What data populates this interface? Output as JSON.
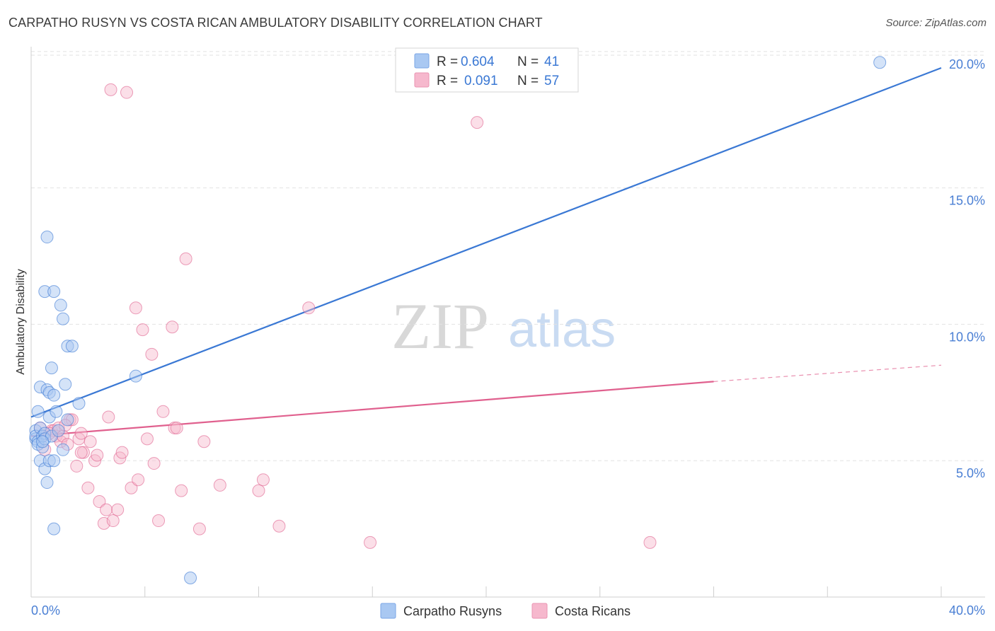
{
  "header": {
    "title": "CARPATHO RUSYN VS COSTA RICAN AMBULATORY DISABILITY CORRELATION CHART",
    "source": "Source: ZipAtlas.com"
  },
  "watermark": {
    "zip": "ZIP",
    "atlas": "atlas"
  },
  "colors": {
    "blue": "#3a78d4",
    "blue_fill": "#a9c8f2",
    "pink": "#e0608e",
    "pink_fill": "#f6b8cd",
    "grid": "#e2e2e2",
    "tick_label": "#4a7fd4"
  },
  "legend": {
    "rows": [
      {
        "r_label": "R =",
        "r_value": "0.604",
        "n_label": "N =",
        "n_value": "41"
      },
      {
        "r_label": "R =",
        "r_value": "0.091",
        "n_label": "N =",
        "n_value": "57"
      }
    ]
  },
  "bottom_legend": {
    "items": [
      {
        "label": "Carpatho Rusyns"
      },
      {
        "label": "Costa Ricans"
      }
    ]
  },
  "chart_data": {
    "type": "scatter",
    "title": "CARPATHO RUSYN VS COSTA RICAN AMBULATORY DISABILITY CORRELATION CHART",
    "xlabel": "",
    "ylabel": "Ambulatory Disability",
    "xlim": [
      0,
      40
    ],
    "ylim": [
      0,
      20.8
    ],
    "x_tick_labels": [
      "0.0%",
      "40.0%"
    ],
    "y_ticks": [
      5,
      10,
      15,
      20
    ],
    "y_tick_labels": [
      "5.0%",
      "10.0%",
      "15.0%",
      "20.0%"
    ],
    "grid": true,
    "series": [
      {
        "name": "Carpatho Rusyns",
        "R": 0.604,
        "N": 41,
        "points": [
          [
            0.2,
            6.1
          ],
          [
            0.2,
            5.8
          ],
          [
            0.2,
            5.9
          ],
          [
            0.3,
            6.8
          ],
          [
            0.3,
            5.7
          ],
          [
            0.3,
            5.6
          ],
          [
            0.4,
            7.7
          ],
          [
            0.4,
            6.2
          ],
          [
            0.4,
            5.0
          ],
          [
            0.5,
            5.5
          ],
          [
            0.5,
            5.9
          ],
          [
            0.6,
            11.2
          ],
          [
            0.6,
            6.0
          ],
          [
            0.6,
            4.7
          ],
          [
            0.6,
            5.8
          ],
          [
            0.7,
            13.2
          ],
          [
            0.7,
            7.6
          ],
          [
            0.7,
            4.2
          ],
          [
            0.8,
            7.5
          ],
          [
            0.8,
            6.6
          ],
          [
            0.8,
            5.0
          ],
          [
            0.9,
            8.4
          ],
          [
            0.9,
            5.9
          ],
          [
            1.0,
            7.4
          ],
          [
            1.0,
            5.0
          ],
          [
            1.0,
            2.5
          ],
          [
            1.0,
            11.2
          ],
          [
            1.1,
            6.8
          ],
          [
            1.2,
            6.1
          ],
          [
            1.3,
            10.7
          ],
          [
            1.4,
            10.2
          ],
          [
            1.4,
            5.4
          ],
          [
            1.5,
            7.8
          ],
          [
            1.6,
            9.2
          ],
          [
            1.6,
            6.5
          ],
          [
            1.8,
            9.2
          ],
          [
            2.1,
            7.1
          ],
          [
            4.6,
            8.1
          ],
          [
            7.0,
            0.7
          ],
          [
            37.3,
            19.6
          ],
          [
            0.5,
            5.7
          ]
        ],
        "trend": {
          "x0": 0,
          "y0": 6.6,
          "x1": 40,
          "y1": 19.4
        }
      },
      {
        "name": "Costa Ricans",
        "R": 0.091,
        "N": 57,
        "points": [
          [
            0.4,
            6.2
          ],
          [
            0.5,
            5.9
          ],
          [
            0.6,
            5.4
          ],
          [
            0.9,
            6.1
          ],
          [
            1.0,
            6.1
          ],
          [
            1.1,
            5.9
          ],
          [
            1.2,
            6.2
          ],
          [
            1.3,
            5.7
          ],
          [
            1.4,
            5.9
          ],
          [
            1.6,
            5.6
          ],
          [
            1.7,
            6.5
          ],
          [
            1.8,
            6.5
          ],
          [
            2.0,
            4.8
          ],
          [
            2.1,
            5.8
          ],
          [
            2.2,
            6.0
          ],
          [
            2.3,
            5.3
          ],
          [
            2.5,
            4.0
          ],
          [
            2.6,
            5.7
          ],
          [
            2.8,
            5.0
          ],
          [
            2.9,
            5.2
          ],
          [
            3.0,
            3.5
          ],
          [
            3.2,
            2.7
          ],
          [
            3.3,
            3.2
          ],
          [
            3.4,
            6.6
          ],
          [
            3.5,
            18.6
          ],
          [
            3.6,
            2.8
          ],
          [
            3.8,
            3.2
          ],
          [
            3.9,
            5.1
          ],
          [
            4.0,
            5.3
          ],
          [
            4.2,
            18.5
          ],
          [
            4.4,
            4.0
          ],
          [
            4.6,
            10.6
          ],
          [
            4.7,
            4.3
          ],
          [
            4.9,
            9.8
          ],
          [
            5.1,
            5.8
          ],
          [
            5.3,
            8.9
          ],
          [
            5.4,
            4.9
          ],
          [
            5.6,
            2.8
          ],
          [
            5.8,
            6.8
          ],
          [
            6.2,
            9.9
          ],
          [
            6.3,
            6.2
          ],
          [
            6.4,
            6.2
          ],
          [
            6.6,
            3.9
          ],
          [
            6.8,
            12.4
          ],
          [
            7.4,
            2.5
          ],
          [
            7.6,
            5.7
          ],
          [
            8.3,
            4.1
          ],
          [
            10.0,
            3.9
          ],
          [
            10.2,
            4.3
          ],
          [
            10.9,
            2.6
          ],
          [
            12.2,
            10.6
          ],
          [
            14.9,
            2.0
          ],
          [
            19.6,
            17.4
          ],
          [
            27.2,
            2.0
          ],
          [
            2.2,
            5.3
          ],
          [
            0.8,
            6.0
          ],
          [
            1.5,
            6.3
          ]
        ],
        "trend": {
          "x0": 0,
          "y0": 5.9,
          "x1": 30,
          "y1": 7.9,
          "dash_x1": 40,
          "dash_y1": 8.5
        }
      }
    ]
  }
}
